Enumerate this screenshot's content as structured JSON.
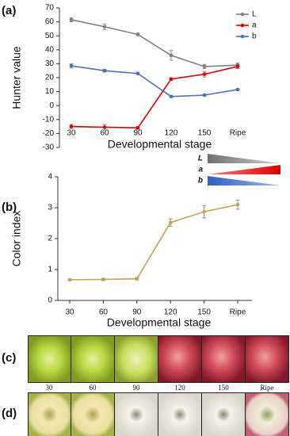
{
  "panels": [
    "(a)",
    "(b)",
    "(c)",
    "(d)"
  ],
  "scale_key": [
    "L",
    "a",
    "b"
  ],
  "photo_labels": [
    "30",
    "60",
    "90",
    "120",
    "150",
    "Ripe"
  ],
  "chart_data": [
    {
      "type": "line",
      "y_label": "Hunter value",
      "x_label": "Developmental stage",
      "categories": [
        "30",
        "60",
        "90",
        "120",
        "150",
        "Ripe"
      ],
      "ylim": [
        -30,
        70
      ],
      "yticks": [
        -30,
        -20,
        -10,
        0,
        10,
        20,
        30,
        40,
        50,
        60,
        70
      ],
      "legend": "upper right",
      "series": [
        {
          "name": "L",
          "color": "#808080",
          "values": [
            61.5,
            56.5,
            51,
            36,
            28,
            29
          ],
          "errors": [
            1.5,
            2,
            1,
            3.5,
            1.5,
            1.5
          ]
        },
        {
          "name": "a",
          "color": "#e00000",
          "values": [
            -15,
            -15.5,
            -16,
            19,
            22.5,
            28
          ],
          "errors": [
            1.5,
            2,
            1,
            1,
            2,
            1.5
          ]
        },
        {
          "name": "b",
          "color": "#4472c4",
          "values": [
            28.5,
            25,
            23,
            6.5,
            7.5,
            11.5
          ],
          "errors": [
            1.5,
            1,
            0.5,
            0.5,
            0.5,
            0.5
          ]
        }
      ]
    },
    {
      "type": "line",
      "y_label": "Color index",
      "x_label": "Developmental stage",
      "categories": [
        "30",
        "60",
        "90",
        "120",
        "150",
        "Ripe"
      ],
      "ylim": [
        0,
        4
      ],
      "yticks": [
        0,
        1,
        2,
        3,
        4
      ],
      "series": [
        {
          "color": "#c9a24a",
          "values": [
            0.67,
            0.68,
            0.7,
            2.52,
            2.87,
            3.1
          ],
          "errors": [
            0.02,
            0.03,
            0.04,
            0.12,
            0.2,
            0.15
          ]
        }
      ]
    }
  ]
}
